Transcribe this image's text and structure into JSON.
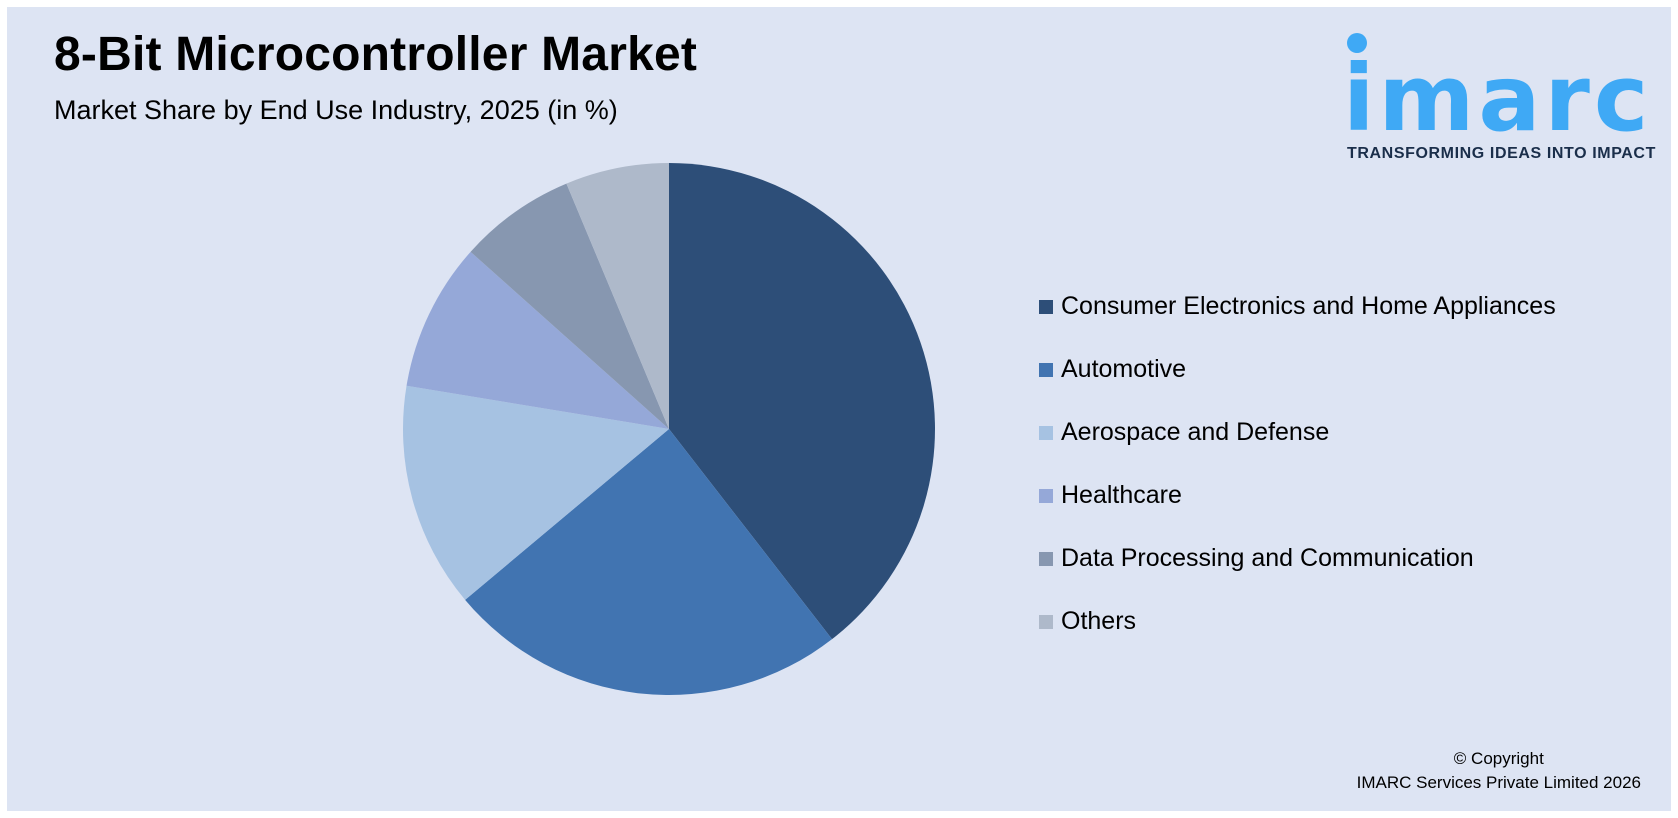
{
  "header": {
    "title": "8-Bit Microcontroller Market",
    "subtitle": "Market Share by End Use Industry, 2025 (in %)"
  },
  "logo": {
    "word": "imarc",
    "tagline": "TRANSFORMING IDEAS INTO IMPACT",
    "color": "#3fa9f5"
  },
  "copyright": {
    "line1": "© Copyright",
    "line2": "IMARC Services Private Limited 2026"
  },
  "chart_data": {
    "type": "pie",
    "title": "8-Bit Microcontroller Market",
    "subtitle": "Market Share by End Use Industry, 2025 (in %)",
    "legend_position": "right",
    "start_angle_deg": 0,
    "direction": "clockwise",
    "slices": [
      {
        "label": "Consumer Electronics and Home Appliances",
        "value": 39.5,
        "color": "#2d4e78"
      },
      {
        "label": "Automotive",
        "value": 24.4,
        "color": "#4174b1"
      },
      {
        "label": "Aerospace and Defense",
        "value": 13.7,
        "color": "#a6c2e2"
      },
      {
        "label": "Healthcare",
        "value": 9.0,
        "color": "#95a8d8"
      },
      {
        "label": "Data Processing and Communication",
        "value": 7.1,
        "color": "#8797b0"
      },
      {
        "label": "Others",
        "value": 6.3,
        "color": "#aeb9ca"
      }
    ]
  }
}
